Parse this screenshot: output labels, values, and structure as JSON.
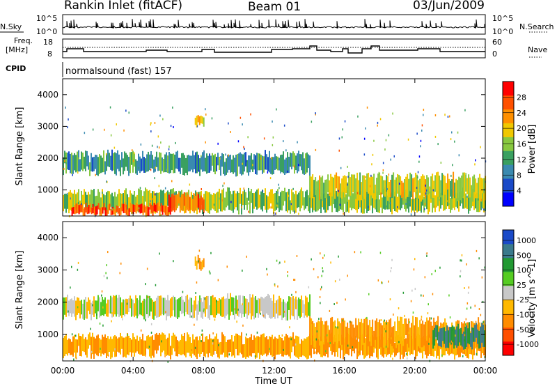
{
  "header": {
    "station": "Rankin Inlet (fitACF)",
    "beam": "Beam 01",
    "date": "03/Jun/2009"
  },
  "noise_panel": {
    "left_label": "N.Sky",
    "right_label": "N.Search",
    "tick_top": "10^5",
    "tick_bottom": "10^0"
  },
  "freq_panel": {
    "left_label_1": "Freq.",
    "left_label_2": "[MHz]",
    "left_tick_top": "18",
    "left_tick_bottom": "8",
    "right_label": "Nave",
    "right_tick_top": "60",
    "right_tick_bottom": "0"
  },
  "cpid": {
    "label": "CPID",
    "value": "normalsound (fast) 157"
  },
  "x_axis": {
    "label": "Time UT",
    "ticks": [
      "00:00",
      "04:00",
      "08:00",
      "12:00",
      "16:00",
      "20:00",
      "00:00"
    ]
  },
  "colors": {
    "velocity_scale": [
      "#ff0000",
      "#ff4f00",
      "#ff8c00",
      "#ffb900",
      "#c8c8c8",
      "#55cc22",
      "#229933",
      "#3a7a8c",
      "#1a4ac8"
    ],
    "power_scale": [
      "#0000ff",
      "#1a4ac8",
      "#3a8ab0",
      "#3aa060",
      "#88c840",
      "#f0c800",
      "#ff9000",
      "#ff5000",
      "#ff0000"
    ]
  },
  "chart_data": [
    {
      "type": "heatmap",
      "title": "Power",
      "ylabel": "Slant Range [km]",
      "xlabel": "Time UT",
      "xlim": [
        "00:00",
        "24:00"
      ],
      "ylim": [
        180,
        4500
      ],
      "yticks": [
        1000,
        2000,
        3000,
        4000
      ],
      "colorbar": {
        "label": "Power [dB]",
        "range": [
          0,
          32
        ],
        "ticks": [
          4,
          8,
          12,
          16,
          20,
          24,
          28
        ]
      },
      "bands": [
        {
          "start_h": 0.0,
          "end_h": 24.0,
          "range_low": 300,
          "range_high": 1000,
          "level_db": 16
        },
        {
          "start_h": 0.5,
          "end_h": 6.0,
          "range_low": 200,
          "range_high": 550,
          "level_db": 28
        },
        {
          "start_h": 6.0,
          "end_h": 8.0,
          "range_low": 300,
          "range_high": 900,
          "level_db": 26
        },
        {
          "start_h": 0.0,
          "end_h": 14.0,
          "range_low": 1500,
          "range_high": 2200,
          "level_db": 10
        },
        {
          "start_h": 7.5,
          "end_h": 8.0,
          "range_low": 3000,
          "range_high": 3400,
          "level_db": 20
        },
        {
          "start_h": 14.0,
          "end_h": 24.0,
          "range_low": 700,
          "range_high": 1500,
          "level_db": 18
        }
      ]
    },
    {
      "type": "heatmap",
      "title": "Velocity",
      "ylabel": "Slant Range [km]",
      "xlabel": "Time UT",
      "xlim": [
        "00:00",
        "24:00"
      ],
      "ylim": [
        180,
        4500
      ],
      "yticks": [
        1000,
        2000,
        3000,
        4000
      ],
      "colorbar": {
        "label": "Velocity [m s^-1]",
        "ticks": [
          1000,
          500,
          100,
          25,
          -25,
          -100,
          -500,
          -1000
        ]
      },
      "bands": [
        {
          "start_h": 0.0,
          "end_h": 24.0,
          "range_low": 300,
          "range_high": 1000,
          "velocity": -100
        },
        {
          "start_h": 0.0,
          "end_h": 14.0,
          "range_low": 1500,
          "range_high": 2200,
          "velocity": 0
        },
        {
          "start_h": 7.5,
          "end_h": 8.0,
          "range_low": 3000,
          "range_high": 3400,
          "velocity": -100
        },
        {
          "start_h": 14.0,
          "end_h": 24.0,
          "range_low": 600,
          "range_high": 1500,
          "velocity": -100
        },
        {
          "start_h": 21.0,
          "end_h": 24.0,
          "range_low": 600,
          "range_high": 1300,
          "velocity": 500
        }
      ]
    }
  ]
}
